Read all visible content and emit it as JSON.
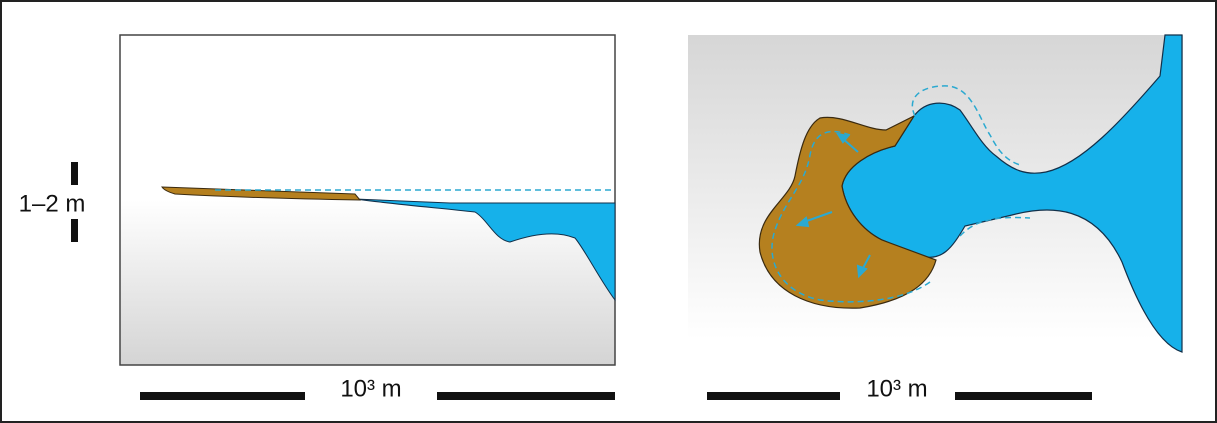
{
  "left_panel": {
    "height_label": "1–2 m",
    "scale_label": "10³ m"
  },
  "right_panel": {
    "scale_label": "10³ m"
  }
}
